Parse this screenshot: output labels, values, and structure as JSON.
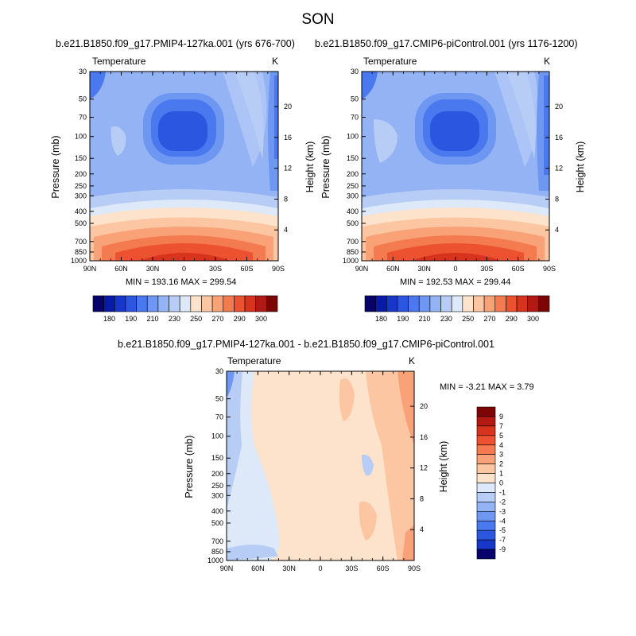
{
  "title": "SON",
  "panels": [
    {
      "title": "b.e21.B1850.f09_g17.PMIP4-127ka.001 (yrs 676-700)",
      "variable": "Temperature",
      "units": "K",
      "stats": "MIN = 193.16  MAX = 299.54"
    },
    {
      "title": "b.e21.B1850.f09_g17.CMIP6-piControl.001 (yrs 1176-1200)",
      "variable": "Temperature",
      "units": "K",
      "stats": "MIN = 192.53  MAX = 299.44"
    },
    {
      "title": "b.e21.B1850.f09_g17.PMIP4-127ka.001 - b.e21.B1850.f09_g17.CMIP6-piControl.001",
      "variable": "Temperature",
      "units": "K",
      "stats": "MIN =  -3.21  MAX =   3.79"
    }
  ],
  "axes": {
    "ylabel": "Pressure (mb)",
    "y2label": "Height (km)",
    "x_ticks": [
      "90N",
      "60N",
      "30N",
      "0",
      "30S",
      "60S",
      "90S"
    ],
    "p_ticks": [
      "30",
      "50",
      "70",
      "100",
      "150",
      "200",
      "250",
      "300",
      "400",
      "500",
      "700",
      "850",
      "1000"
    ],
    "h_ticks_top": [
      "20",
      "16",
      "12",
      "8",
      "4"
    ],
    "h_ticks_diff": [
      "20",
      "16",
      "12",
      "8",
      "4"
    ]
  },
  "colorbar_abs": {
    "labels": [
      "180",
      "190",
      "210",
      "230",
      "250",
      "270",
      "290",
      "300"
    ],
    "colors": [
      "#08036b",
      "#0a1aa8",
      "#1637c8",
      "#2a56e0",
      "#4a78ee",
      "#6e97f2",
      "#93b3f4",
      "#b8cdf6",
      "#dde8f8",
      "#fde3cc",
      "#fcc6a3",
      "#f9a278",
      "#f47a50",
      "#ec5230",
      "#d8341d",
      "#b21912",
      "#7d0505"
    ]
  },
  "colorbar_diff": {
    "labels": [
      "9",
      "7",
      "5",
      "4",
      "3",
      "2",
      "1",
      "0",
      "-1",
      "-2",
      "-3",
      "-4",
      "-5",
      "-7",
      "-9"
    ],
    "colors": [
      "#7d0505",
      "#b21912",
      "#d8341d",
      "#ec5230",
      "#f47a50",
      "#f9a278",
      "#fcc6a3",
      "#fde3cc",
      "#dde8f8",
      "#b8cdf6",
      "#93b3f4",
      "#6e97f2",
      "#4a78ee",
      "#2a56e0",
      "#1637c8",
      "#08036b"
    ]
  },
  "chart_data": [
    {
      "type": "heatmap",
      "title": "b.e21.B1850.f09_g17.PMIP4-127ka.001 (yrs 676-700)",
      "variable": "Temperature",
      "units": "K",
      "x": [
        "90N",
        "60N",
        "30N",
        "0",
        "30S",
        "60S",
        "90S"
      ],
      "y_pressure_mb": [
        30,
        50,
        70,
        100,
        150,
        200,
        250,
        300,
        400,
        500,
        700,
        850,
        1000
      ],
      "xlabel": "",
      "ylabel": "Pressure (mb)",
      "y2label": "Height (km)",
      "min": 193.16,
      "max": 299.54
    },
    {
      "type": "heatmap",
      "title": "b.e21.B1850.f09_g17.CMIP6-piControl.001 (yrs 1176-1200)",
      "variable": "Temperature",
      "units": "K",
      "x": [
        "90N",
        "60N",
        "30N",
        "0",
        "30S",
        "60S",
        "90S"
      ],
      "y_pressure_mb": [
        30,
        50,
        70,
        100,
        150,
        200,
        250,
        300,
        400,
        500,
        700,
        850,
        1000
      ],
      "xlabel": "",
      "ylabel": "Pressure (mb)",
      "y2label": "Height (km)",
      "min": 192.53,
      "max": 299.44
    },
    {
      "type": "heatmap",
      "title": "b.e21.B1850.f09_g17.PMIP4-127ka.001 - b.e21.B1850.f09_g17.CMIP6-piControl.001",
      "variable": "Temperature",
      "units": "K",
      "x": [
        "90N",
        "60N",
        "30N",
        "0",
        "30S",
        "60S",
        "90S"
      ],
      "y_pressure_mb": [
        30,
        50,
        70,
        100,
        150,
        200,
        250,
        300,
        400,
        500,
        700,
        850,
        1000
      ],
      "xlabel": "",
      "ylabel": "Pressure (mb)",
      "y2label": "Height (km)",
      "min": -3.21,
      "max": 3.79
    }
  ]
}
